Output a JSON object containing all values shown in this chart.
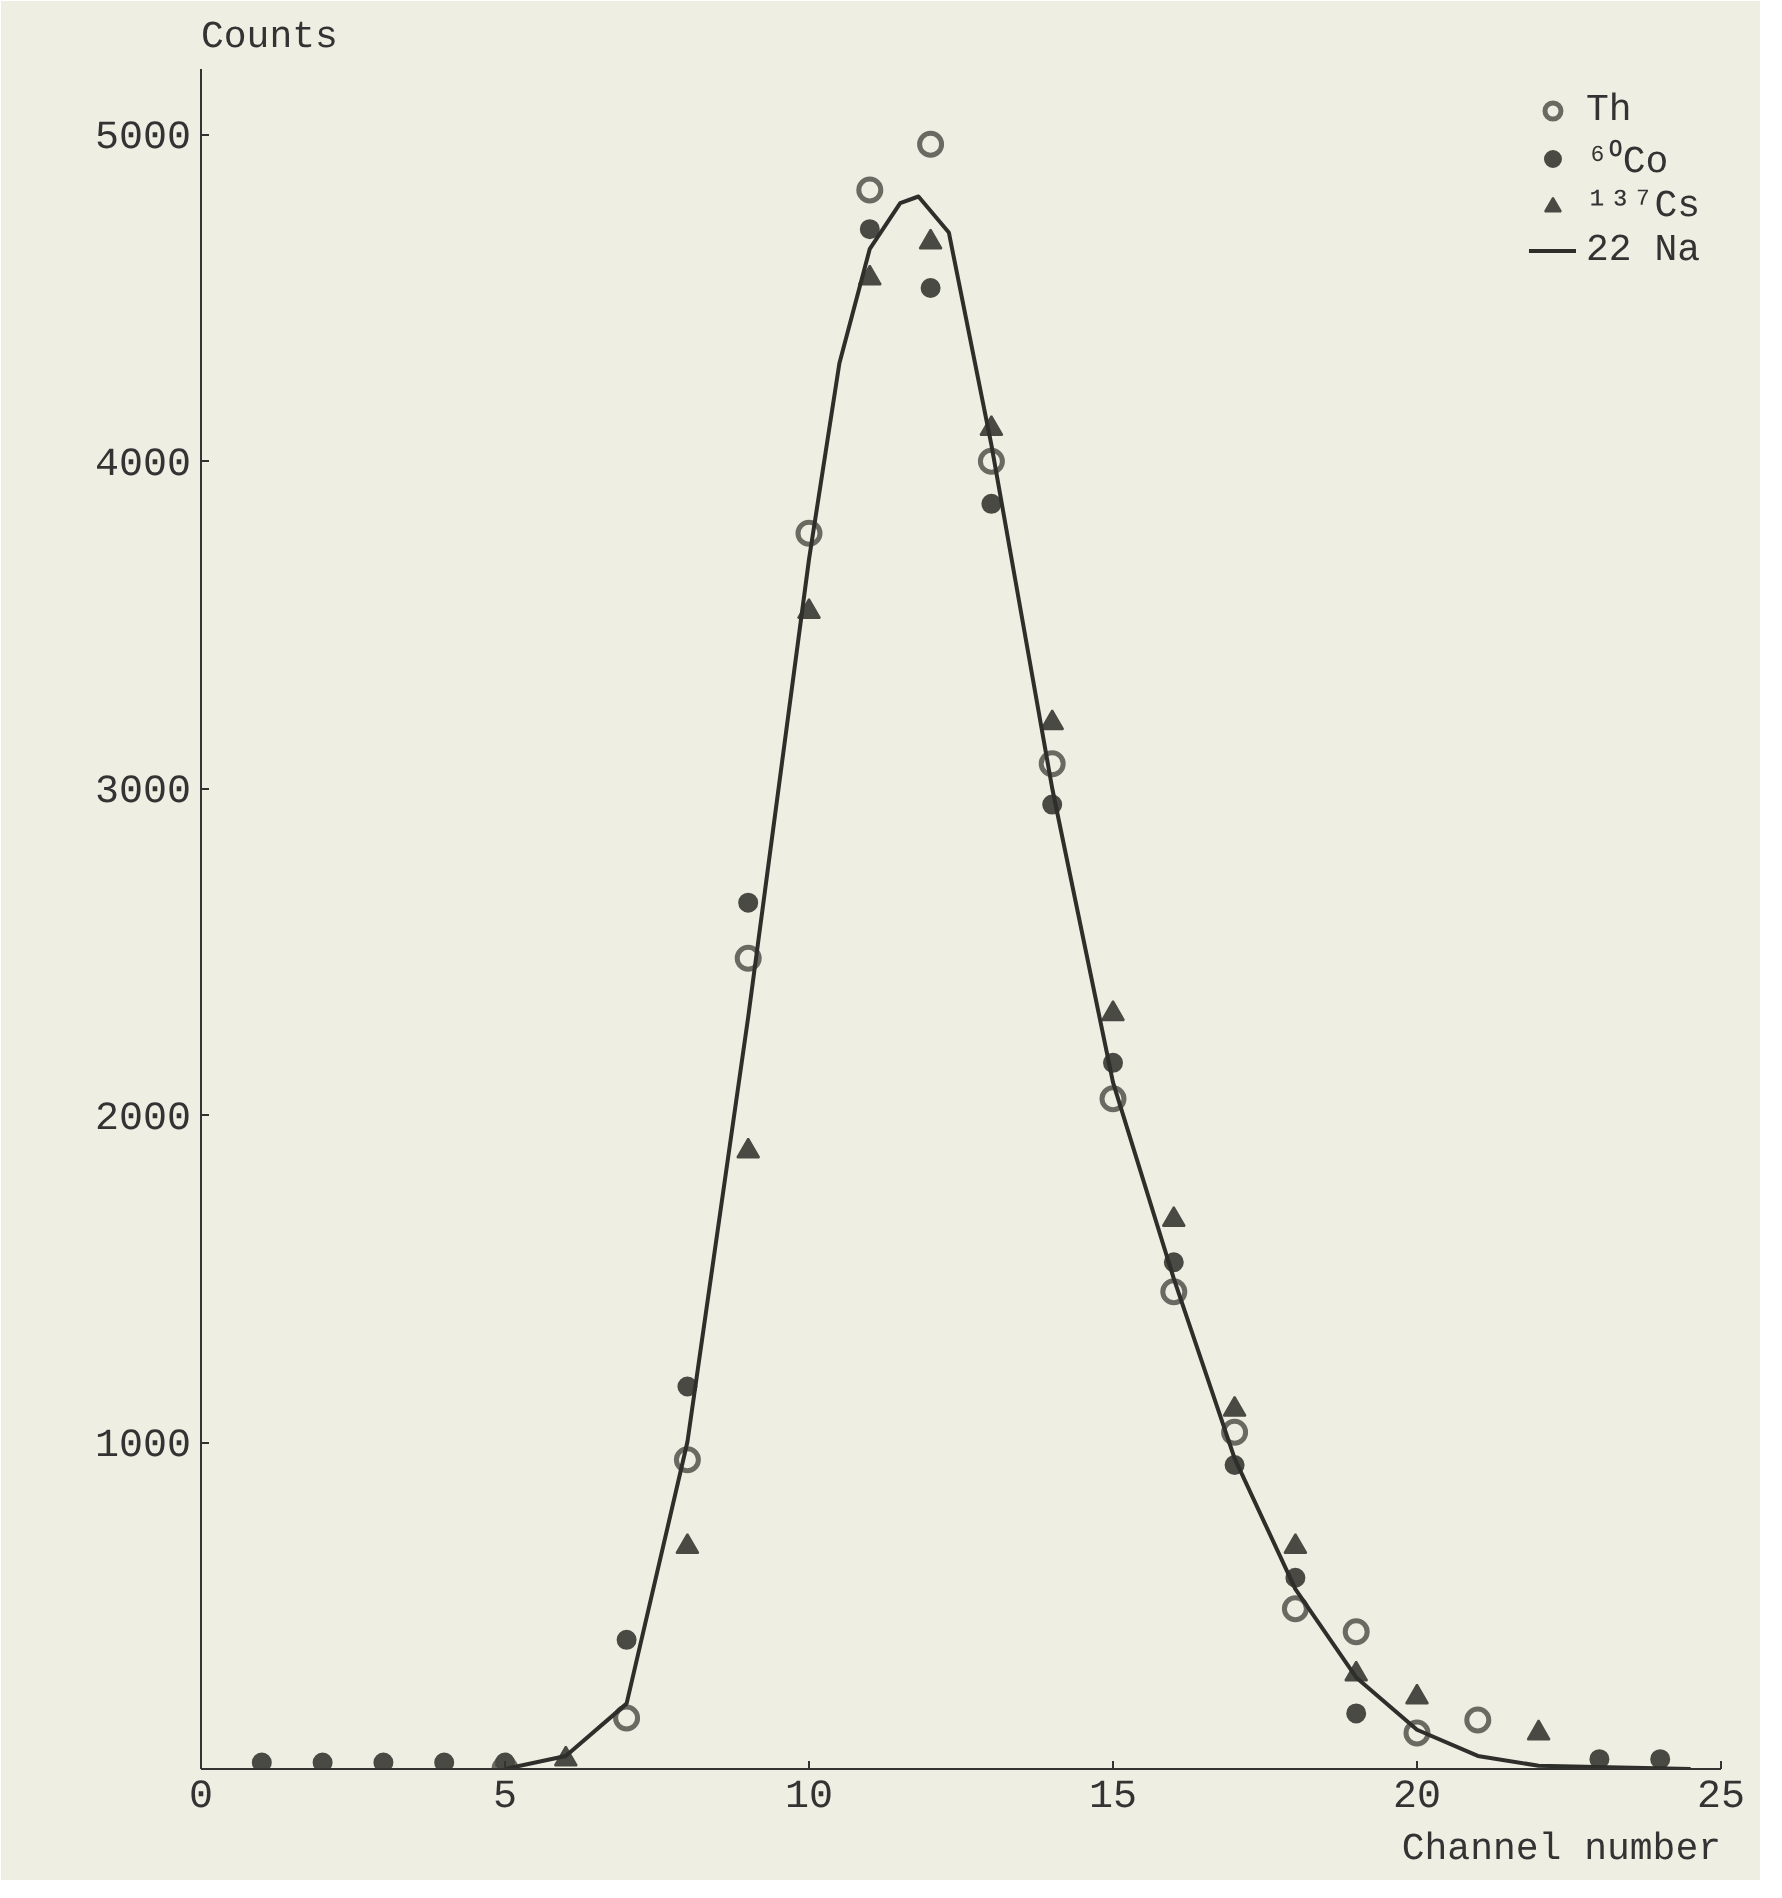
{
  "chart_data": {
    "type": "scatter",
    "xlabel": "Channel number",
    "ylabel": "Counts",
    "xlim": [
      0,
      25
    ],
    "xticks": [
      0,
      5,
      10,
      15,
      20,
      25
    ],
    "ylim": [
      0,
      5200
    ],
    "yticks": [
      1000,
      2000,
      3000,
      4000,
      5000
    ],
    "grid": false,
    "legend": "top right",
    "series": [
      {
        "name": "Th",
        "marker": "circle",
        "color": "#6a6a62",
        "x": [
          5,
          7,
          8,
          9,
          10,
          11,
          12,
          13,
          14,
          15,
          16,
          17,
          18,
          19,
          20,
          21
        ],
        "values": [
          0,
          156,
          946,
          2480,
          3780,
          4830,
          4970,
          4000,
          3075,
          2050,
          1460,
          1030,
          490,
          420,
          110,
          150
        ]
      },
      {
        "name": "⁶⁰Co",
        "marker": "dot",
        "color": "#4a4a44",
        "x": [
          1,
          2,
          3,
          4,
          5,
          7,
          8,
          9,
          11,
          12,
          13,
          14,
          15,
          16,
          17,
          18,
          19,
          23,
          24
        ],
        "values": [
          20,
          20,
          20,
          20,
          20,
          395,
          1170,
          2650,
          4710,
          4530,
          3870,
          2950,
          2160,
          1550,
          930,
          585,
          170,
          30,
          30
        ]
      },
      {
        "name": "¹³⁷Cs",
        "marker": "triangle",
        "color": "#4a4a44",
        "x": [
          6,
          8,
          9,
          10,
          11,
          12,
          13,
          14,
          15,
          16,
          17,
          18,
          19,
          20,
          22
        ],
        "values": [
          30,
          680,
          1890,
          3540,
          4560,
          4670,
          4100,
          3200,
          2310,
          1680,
          1100,
          680,
          290,
          220,
          110
        ]
      },
      {
        "name": "22 Na",
        "type": "line",
        "color": "#2e2e2a",
        "x": [
          5,
          6,
          7,
          8,
          9,
          10,
          10.5,
          11,
          11.5,
          11.8,
          12.3,
          13,
          14,
          15,
          16,
          17,
          18,
          19,
          20,
          21,
          22,
          24.5
        ],
        "values": [
          0,
          40,
          200,
          1000,
          2300,
          3700,
          4300,
          4650,
          4790,
          4810,
          4700,
          4050,
          3000,
          2100,
          1500,
          950,
          550,
          280,
          120,
          40,
          10,
          0
        ]
      }
    ]
  }
}
